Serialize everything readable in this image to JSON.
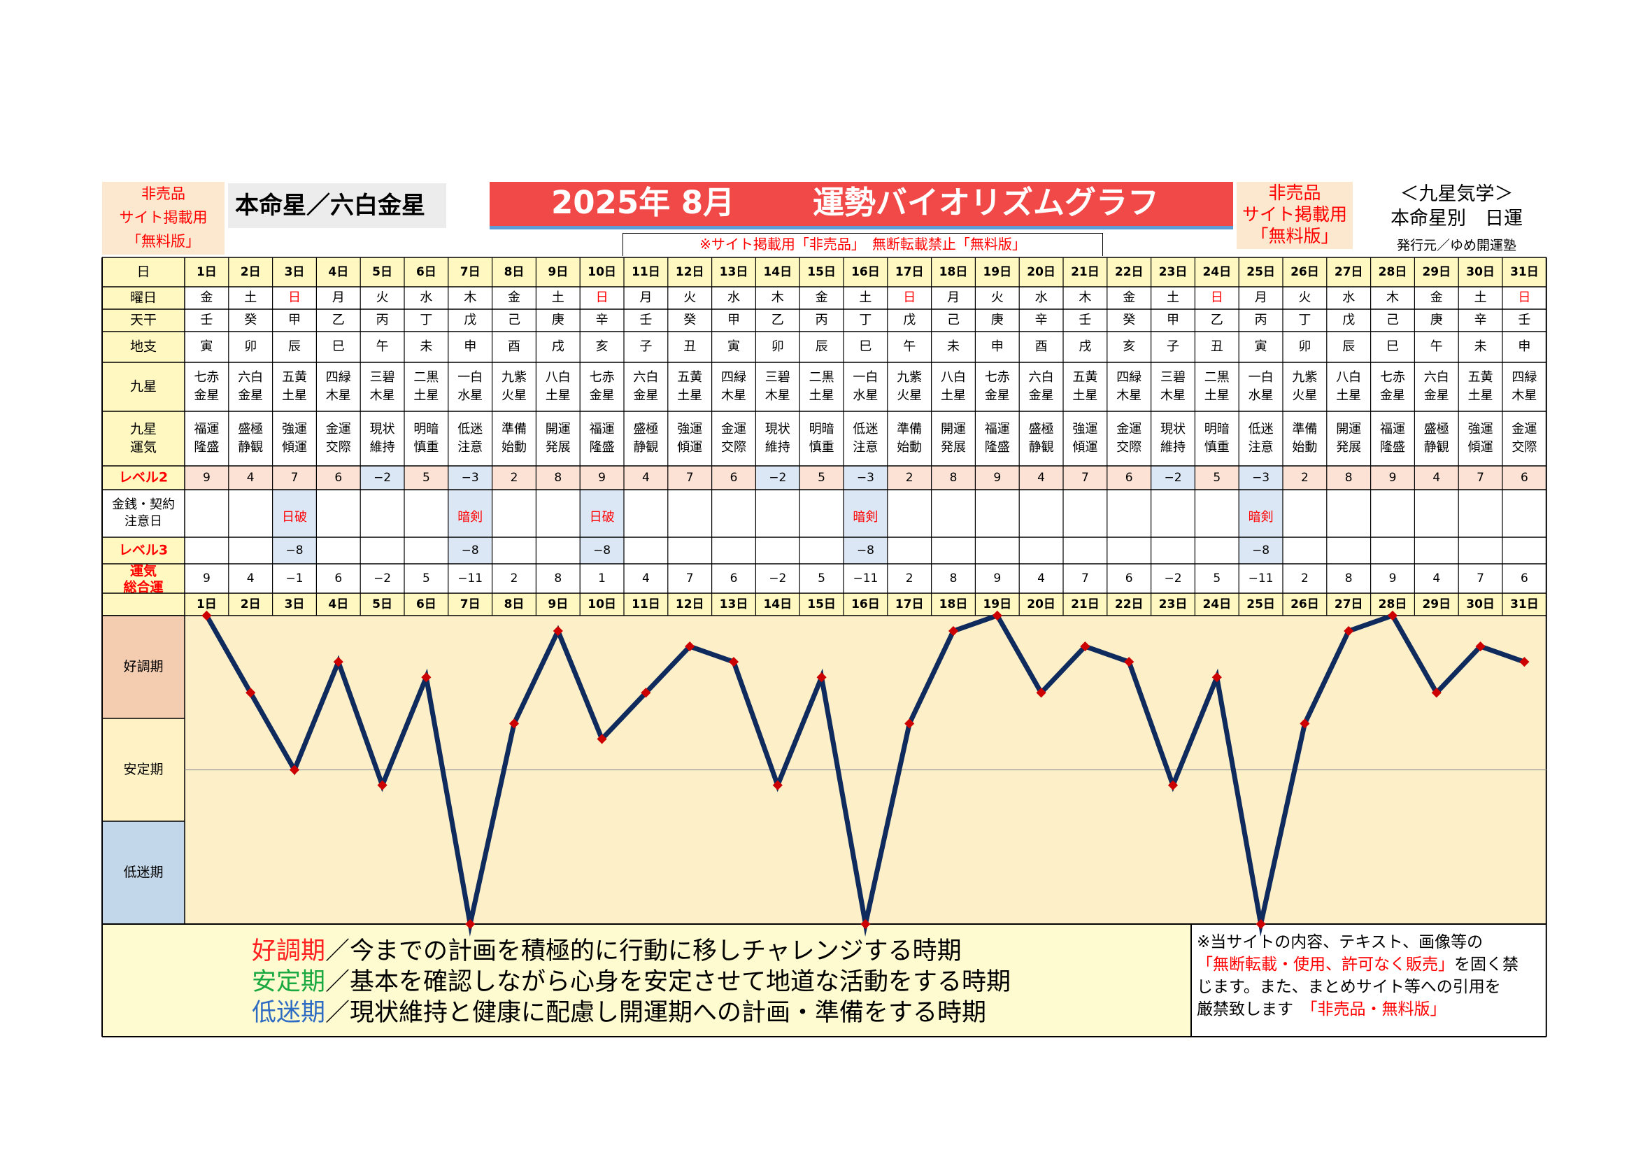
{
  "header": {
    "nonsale_left": [
      "非売品",
      "サイト掲載用",
      "「無料版」"
    ],
    "nonsale_right": [
      "非売品",
      "サイト掲載用",
      "「無料版」"
    ],
    "honmei": "本命星／六白金星",
    "year_month": "2025年 8月",
    "title": "運勢バイオリズムグラフ",
    "kyusei": [
      "＜九星気学＞",
      "本命星別　日運"
    ],
    "publisher": "発行元／ゆめ開運塾",
    "notice": "※サイト掲載用「非売品」　無断転載禁止「無料版」"
  },
  "row_labels": {
    "day": "日",
    "weekday": "曜日",
    "kan": "天干",
    "shi": "地支",
    "star": "九星",
    "luck": [
      "九星",
      "運気"
    ],
    "level2": "レベル2",
    "money": [
      "金銭・契約",
      "注意日"
    ],
    "level3": "レベル3",
    "total": [
      "運気",
      "総合運"
    ]
  },
  "days": [
    "1日",
    "2日",
    "3日",
    "4日",
    "5日",
    "6日",
    "7日",
    "8日",
    "9日",
    "10日",
    "11日",
    "12日",
    "13日",
    "14日",
    "15日",
    "16日",
    "17日",
    "18日",
    "19日",
    "20日",
    "21日",
    "22日",
    "23日",
    "24日",
    "25日",
    "26日",
    "27日",
    "28日",
    "29日",
    "30日",
    "31日"
  ],
  "weekday": [
    "金",
    "土",
    "日",
    "月",
    "火",
    "水",
    "木",
    "金",
    "土",
    "日",
    "月",
    "火",
    "水",
    "木",
    "金",
    "土",
    "日",
    "月",
    "火",
    "水",
    "木",
    "金",
    "土",
    "日",
    "月",
    "火",
    "水",
    "木",
    "金",
    "土",
    "日"
  ],
  "kan": [
    "壬",
    "癸",
    "甲",
    "乙",
    "丙",
    "丁",
    "戊",
    "己",
    "庚",
    "辛",
    "壬",
    "癸",
    "甲",
    "乙",
    "丙",
    "丁",
    "戊",
    "己",
    "庚",
    "辛",
    "壬",
    "癸",
    "甲",
    "乙",
    "丙",
    "丁",
    "戊",
    "己",
    "庚",
    "辛",
    "壬"
  ],
  "shi": [
    "寅",
    "卯",
    "辰",
    "巳",
    "午",
    "未",
    "申",
    "酉",
    "戌",
    "亥",
    "子",
    "丑",
    "寅",
    "卯",
    "辰",
    "巳",
    "午",
    "未",
    "申",
    "酉",
    "戌",
    "亥",
    "子",
    "丑",
    "寅",
    "卯",
    "辰",
    "巳",
    "午",
    "未",
    "申"
  ],
  "star": [
    [
      "七赤",
      "金星"
    ],
    [
      "六白",
      "金星"
    ],
    [
      "五黄",
      "土星"
    ],
    [
      "四緑",
      "木星"
    ],
    [
      "三碧",
      "木星"
    ],
    [
      "二黒",
      "土星"
    ],
    [
      "一白",
      "水星"
    ],
    [
      "九紫",
      "火星"
    ],
    [
      "八白",
      "土星"
    ],
    [
      "七赤",
      "金星"
    ],
    [
      "六白",
      "金星"
    ],
    [
      "五黄",
      "土星"
    ],
    [
      "四緑",
      "木星"
    ],
    [
      "三碧",
      "木星"
    ],
    [
      "二黒",
      "土星"
    ],
    [
      "一白",
      "水星"
    ],
    [
      "九紫",
      "火星"
    ],
    [
      "八白",
      "土星"
    ],
    [
      "七赤",
      "金星"
    ],
    [
      "六白",
      "金星"
    ],
    [
      "五黄",
      "土星"
    ],
    [
      "四緑",
      "木星"
    ],
    [
      "三碧",
      "木星"
    ],
    [
      "二黒",
      "土星"
    ],
    [
      "一白",
      "水星"
    ],
    [
      "九紫",
      "火星"
    ],
    [
      "八白",
      "土星"
    ],
    [
      "七赤",
      "金星"
    ],
    [
      "六白",
      "金星"
    ],
    [
      "五黄",
      "土星"
    ],
    [
      "四緑",
      "木星"
    ]
  ],
  "luck": [
    [
      "福運",
      "隆盛"
    ],
    [
      "盛極",
      "静観"
    ],
    [
      "強運",
      "傾運"
    ],
    [
      "金運",
      "交際"
    ],
    [
      "現状",
      "維持"
    ],
    [
      "明暗",
      "慎重"
    ],
    [
      "低迷",
      "注意"
    ],
    [
      "準備",
      "始動"
    ],
    [
      "開運",
      "発展"
    ],
    [
      "福運",
      "隆盛"
    ],
    [
      "盛極",
      "静観"
    ],
    [
      "強運",
      "傾運"
    ],
    [
      "金運",
      "交際"
    ],
    [
      "現状",
      "維持"
    ],
    [
      "明暗",
      "慎重"
    ],
    [
      "低迷",
      "注意"
    ],
    [
      "準備",
      "始動"
    ],
    [
      "開運",
      "発展"
    ],
    [
      "福運",
      "隆盛"
    ],
    [
      "盛極",
      "静観"
    ],
    [
      "強運",
      "傾運"
    ],
    [
      "金運",
      "交際"
    ],
    [
      "現状",
      "維持"
    ],
    [
      "明暗",
      "慎重"
    ],
    [
      "低迷",
      "注意"
    ],
    [
      "準備",
      "始動"
    ],
    [
      "開運",
      "発展"
    ],
    [
      "福運",
      "隆盛"
    ],
    [
      "盛極",
      "静観"
    ],
    [
      "強運",
      "傾運"
    ],
    [
      "金運",
      "交際"
    ]
  ],
  "level2": [
    "9",
    "4",
    "7",
    "6",
    "−2",
    "5",
    "−3",
    "2",
    "8",
    "9",
    "4",
    "7",
    "6",
    "−2",
    "5",
    "−3",
    "2",
    "8",
    "9",
    "4",
    "7",
    "6",
    "−2",
    "5",
    "−3",
    "2",
    "8",
    "9",
    "4",
    "7",
    "6"
  ],
  "money": [
    "",
    "",
    "日破",
    "",
    "",
    "",
    "暗剣",
    "",
    "",
    "日破",
    "",
    "",
    "",
    "",
    "",
    "暗剣",
    "",
    "",
    "",
    "",
    "",
    "",
    "",
    "",
    "暗剣",
    "",
    "",
    "",
    "",
    "",
    ""
  ],
  "level3": [
    "",
    "",
    "−8",
    "",
    "",
    "",
    "−8",
    "",
    "",
    "−8",
    "",
    "",
    "",
    "",
    "",
    "−8",
    "",
    "",
    "",
    "",
    "",
    "",
    "",
    "",
    "−8",
    "",
    "",
    "",
    "",
    "",
    ""
  ],
  "total": [
    "9",
    "4",
    "−1",
    "6",
    "−2",
    "5",
    "−11",
    "2",
    "8",
    "1",
    "4",
    "7",
    "6",
    "−2",
    "5",
    "−11",
    "2",
    "8",
    "9",
    "4",
    "7",
    "6",
    "−2",
    "5",
    "−11",
    "2",
    "8",
    "9",
    "4",
    "7",
    "6"
  ],
  "zones": [
    "好調期",
    "安定期",
    "低迷期"
  ],
  "legend": [
    {
      "key": "好調期",
      "text": "／今までの計画を積極的に行動に移しチャレンジする時期"
    },
    {
      "key": "安定期",
      "text": "／基本を確認しながら心身を安定させて地道な活動をする時期"
    },
    {
      "key": "低迷期",
      "text": "／現状維持と健康に配慮し開運期への計画・準備をする時期"
    }
  ],
  "copyright": {
    "line1": "※当サイトの内容、テキスト、画像等の",
    "line2_red": "「無断転載・使用、許可なく販売」",
    "line2_rest": "を固く禁",
    "line3": "じます。また、まとめサイト等への引用を",
    "line4": "厳禁致します",
    "line4_red": "「非売品・無料版」"
  },
  "colors": {
    "header_yellow": "#fff8c0",
    "zone_good": "#f4ccb0",
    "zone_stable": "#fff2c4",
    "zone_low": "#c3d7ea",
    "plot_bg": "#fdefc8",
    "line": "#0f2a5c",
    "marker": "#cc0000",
    "title_red": "#f14848",
    "highlight_blue": "#dbe7f4",
    "row_pink": "#fbe2d4"
  },
  "chart_data": {
    "type": "line",
    "title": "運勢バイオリズムグラフ",
    "xlabel": "",
    "ylabel": "",
    "categories": [
      "1日",
      "2日",
      "3日",
      "4日",
      "5日",
      "6日",
      "7日",
      "8日",
      "9日",
      "10日",
      "11日",
      "12日",
      "13日",
      "14日",
      "15日",
      "16日",
      "17日",
      "18日",
      "19日",
      "20日",
      "21日",
      "22日",
      "23日",
      "24日",
      "25日",
      "26日",
      "27日",
      "28日",
      "29日",
      "30日",
      "31日"
    ],
    "series": [
      {
        "values": [
          9,
          4,
          -1,
          6,
          -2,
          5,
          -11,
          2,
          8,
          1,
          4,
          7,
          6,
          -2,
          5,
          -11,
          2,
          8,
          9,
          4,
          7,
          6,
          -2,
          5,
          -11,
          2,
          8,
          9,
          4,
          7,
          6
        ]
      }
    ],
    "ylim": [
      -11,
      9
    ],
    "bands": [
      "好調期",
      "安定期",
      "低迷期"
    ],
    "grid": false
  }
}
